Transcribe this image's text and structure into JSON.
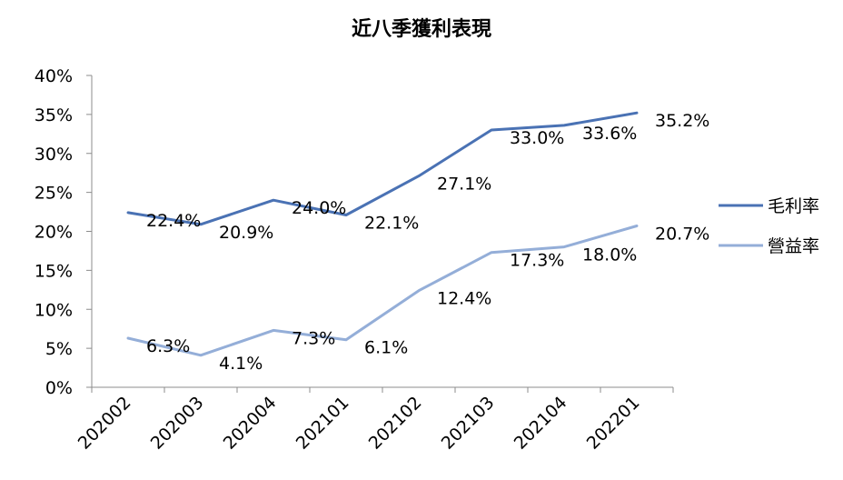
{
  "chart_data": {
    "type": "line",
    "title": "近八季獲利表現",
    "categories": [
      "202002",
      "202003",
      "202004",
      "202101",
      "202102",
      "202103",
      "202104",
      "202201"
    ],
    "y_ticks": [
      "0%",
      "5%",
      "10%",
      "15%",
      "20%",
      "25%",
      "30%",
      "35%",
      "40%"
    ],
    "ylim": [
      0,
      40
    ],
    "legend_position": "right",
    "grid": false,
    "series": [
      {
        "name": "毛利率",
        "color": "#4a72b4",
        "values": [
          22.4,
          20.9,
          24.0,
          22.1,
          27.1,
          33.0,
          33.6,
          35.2
        ],
        "labels": [
          "22.4%",
          "20.9%",
          "24.0%",
          "22.1%",
          "27.1%",
          "33.0%",
          "33.6%",
          "35.2%"
        ]
      },
      {
        "name": "營益率",
        "color": "#94aed8",
        "values": [
          6.3,
          4.1,
          7.3,
          6.1,
          12.4,
          17.3,
          18.0,
          20.7
        ],
        "labels": [
          "6.3%",
          "4.1%",
          "7.3%",
          "6.1%",
          "12.4%",
          "17.3%",
          "18.0%",
          "20.7%"
        ]
      }
    ]
  }
}
